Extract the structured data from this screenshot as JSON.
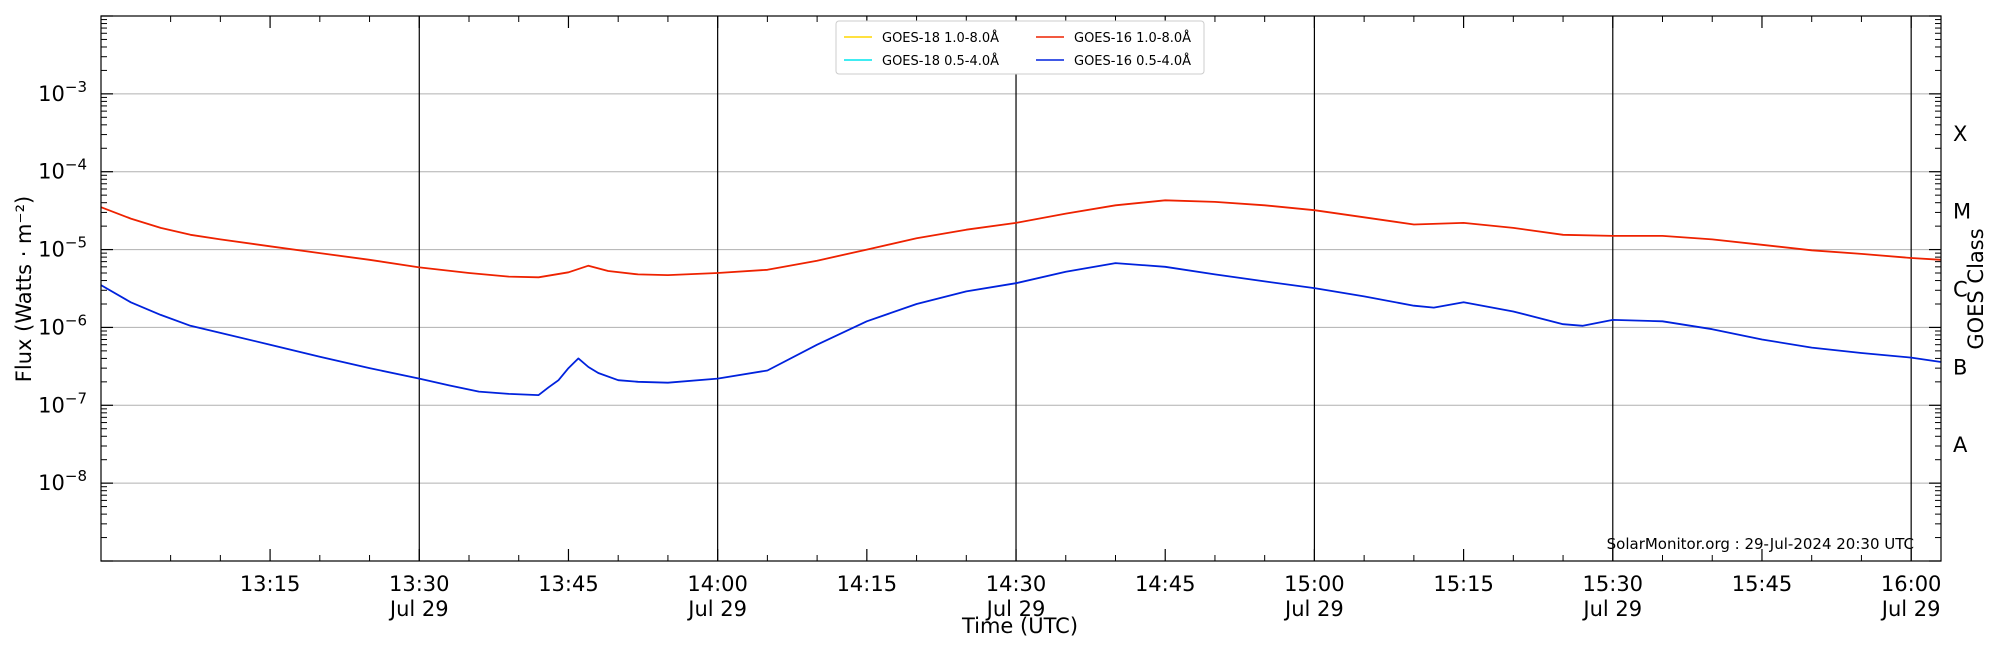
{
  "chart_data": {
    "type": "line",
    "xlabel": "Time (UTC)",
    "ylabel": "Flux (Watts · m⁻²)",
    "ylabel_right": "GOES Class",
    "y_scale": "log",
    "ylim": [
      1e-09,
      0.01
    ],
    "x_range": [
      "12:58",
      "16:03"
    ],
    "grid": "horizontal at each decade",
    "vertical_lines_at": [
      "13:30",
      "14:00",
      "14:30",
      "15:00",
      "15:30",
      "16:00"
    ],
    "x_ticks": [
      {
        "time": "13:15",
        "label": "13:15",
        "sublabel": ""
      },
      {
        "time": "13:30",
        "label": "13:30",
        "sublabel": "Jul 29"
      },
      {
        "time": "13:45",
        "label": "13:45",
        "sublabel": ""
      },
      {
        "time": "14:00",
        "label": "14:00",
        "sublabel": "Jul 29"
      },
      {
        "time": "14:15",
        "label": "14:15",
        "sublabel": ""
      },
      {
        "time": "14:30",
        "label": "14:30",
        "sublabel": "Jul 29"
      },
      {
        "time": "14:45",
        "label": "14:45",
        "sublabel": ""
      },
      {
        "time": "15:00",
        "label": "15:00",
        "sublabel": "Jul 29"
      },
      {
        "time": "15:15",
        "label": "15:15",
        "sublabel": ""
      },
      {
        "time": "15:30",
        "label": "15:30",
        "sublabel": "Jul 29"
      },
      {
        "time": "15:45",
        "label": "15:45",
        "sublabel": ""
      },
      {
        "time": "16:00",
        "label": "16:00",
        "sublabel": "Jul 29"
      }
    ],
    "y_ticks": [
      {
        "exp": -8,
        "label": "10",
        "sup": "−8"
      },
      {
        "exp": -7,
        "label": "10",
        "sup": "−7"
      },
      {
        "exp": -6,
        "label": "10",
        "sup": "−6"
      },
      {
        "exp": -5,
        "label": "10",
        "sup": "−5"
      },
      {
        "exp": -4,
        "label": "10",
        "sup": "−4"
      },
      {
        "exp": -3,
        "label": "10",
        "sup": "−3"
      }
    ],
    "goes_classes": [
      {
        "label": "X",
        "flux": 0.000316
      },
      {
        "label": "M",
        "flux": 3.16e-05
      },
      {
        "label": "C",
        "flux": 3.16e-06
      },
      {
        "label": "B",
        "flux": 3.16e-07
      },
      {
        "label": "A",
        "flux": 3.16e-08
      }
    ],
    "legend_position": "top-center",
    "legend": [
      {
        "name": "GOES-18 1.0-8.0Å",
        "color": "#ffd700"
      },
      {
        "name": "GOES-18 0.5-4.0Å",
        "color": "#00e5ee"
      },
      {
        "name": "GOES-16 1.0-8.0Å",
        "color": "#ee2200"
      },
      {
        "name": "GOES-16 0.5-4.0Å",
        "color": "#0022dd"
      }
    ],
    "series": [
      {
        "name": "GOES-16 1.0-8.0Å",
        "color": "#ee2200",
        "x": [
          "12:58",
          "13:01",
          "13:04",
          "13:07",
          "13:10",
          "13:15",
          "13:20",
          "13:25",
          "13:30",
          "13:35",
          "13:39",
          "13:42",
          "13:45",
          "13:47",
          "13:49",
          "13:52",
          "13:55",
          "14:00",
          "14:05",
          "14:10",
          "14:15",
          "14:20",
          "14:25",
          "14:30",
          "14:35",
          "14:40",
          "14:45",
          "14:50",
          "14:55",
          "15:00",
          "15:05",
          "15:10",
          "15:15",
          "15:20",
          "15:25",
          "15:30",
          "15:35",
          "15:40",
          "15:45",
          "15:50",
          "15:55",
          "16:00",
          "16:03"
        ],
        "y": [
          3.5e-05,
          2.5e-05,
          1.9e-05,
          1.55e-05,
          1.35e-05,
          1.1e-05,
          9e-06,
          7.4e-06,
          5.9e-06,
          5e-06,
          4.5e-06,
          4.4e-06,
          5.1e-06,
          6.2e-06,
          5.3e-06,
          4.8e-06,
          4.7e-06,
          5e-06,
          5.5e-06,
          7.2e-06,
          1e-05,
          1.4e-05,
          1.8e-05,
          2.2e-05,
          2.9e-05,
          3.7e-05,
          4.3e-05,
          4.1e-05,
          3.7e-05,
          3.2e-05,
          2.6e-05,
          2.1e-05,
          2.2e-05,
          1.9e-05,
          1.55e-05,
          1.5e-05,
          1.5e-05,
          1.35e-05,
          1.15e-05,
          9.8e-06,
          8.8e-06,
          7.8e-06,
          7.4e-06
        ]
      },
      {
        "name": "GOES-16 0.5-4.0Å",
        "color": "#0022dd",
        "x": [
          "12:58",
          "13:01",
          "13:04",
          "13:07",
          "13:10",
          "13:15",
          "13:20",
          "13:25",
          "13:30",
          "13:33",
          "13:36",
          "13:39",
          "13:42",
          "13:43",
          "13:44",
          "13:45",
          "13:46",
          "13:47",
          "13:48",
          "13:50",
          "13:52",
          "13:55",
          "14:00",
          "14:05",
          "14:10",
          "14:15",
          "14:20",
          "14:25",
          "14:30",
          "14:35",
          "14:40",
          "14:45",
          "14:50",
          "14:55",
          "15:00",
          "15:05",
          "15:10",
          "15:12",
          "15:15",
          "15:20",
          "15:25",
          "15:27",
          "15:30",
          "15:35",
          "15:40",
          "15:45",
          "15:50",
          "15:55",
          "16:00",
          "16:03"
        ],
        "y": [
          3.5e-06,
          2.1e-06,
          1.45e-06,
          1.05e-06,
          8.5e-07,
          6e-07,
          4.2e-07,
          3e-07,
          2.2e-07,
          1.8e-07,
          1.5e-07,
          1.4e-07,
          1.35e-07,
          1.7e-07,
          2.1e-07,
          3e-07,
          4e-07,
          3.1e-07,
          2.6e-07,
          2.1e-07,
          2e-07,
          1.95e-07,
          2.2e-07,
          2.8e-07,
          6e-07,
          1.2e-06,
          2e-06,
          2.9e-06,
          3.7e-06,
          5.2e-06,
          6.7e-06,
          6e-06,
          4.8e-06,
          3.9e-06,
          3.2e-06,
          2.5e-06,
          1.9e-06,
          1.8e-06,
          2.1e-06,
          1.6e-06,
          1.1e-06,
          1.05e-06,
          1.25e-06,
          1.2e-06,
          9.5e-07,
          7e-07,
          5.5e-07,
          4.7e-07,
          4.1e-07,
          3.6e-07
        ]
      }
    ],
    "credit": "SolarMonitor.org : 29-Jul-2024 20:30 UTC"
  }
}
